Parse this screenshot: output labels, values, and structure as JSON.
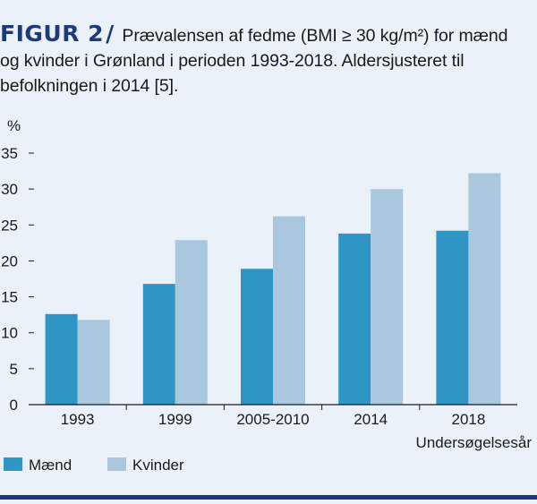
{
  "caption": {
    "label": "FIGUR 2",
    "separator": "/",
    "line1": "Prævalensen af fedme (BMI ≥ 30 kg/m²) for mænd",
    "line2": "og kvinder i Grønland i perioden 1993-2018. Aldersjusteret til",
    "line3": "befolkningen i 2014 [5]."
  },
  "chart_data": {
    "type": "bar",
    "categories": [
      "1993",
      "1999",
      "2005-2010",
      "2014",
      "2018"
    ],
    "series": [
      {
        "name": "Mænd",
        "color": "#2e95c4",
        "values": [
          12.6,
          16.8,
          18.9,
          23.8,
          24.2
        ]
      },
      {
        "name": "Kvinder",
        "color": "#a9c8e0",
        "values": [
          11.8,
          22.9,
          26.2,
          30.0,
          32.2
        ]
      }
    ],
    "ylabel": "%",
    "xlabel": "Undersøgelsesår",
    "ylim": [
      0,
      35
    ],
    "yticks": [
      0,
      5,
      10,
      15,
      20,
      25,
      30,
      35
    ],
    "grid": false,
    "legend": "bottom-left"
  }
}
